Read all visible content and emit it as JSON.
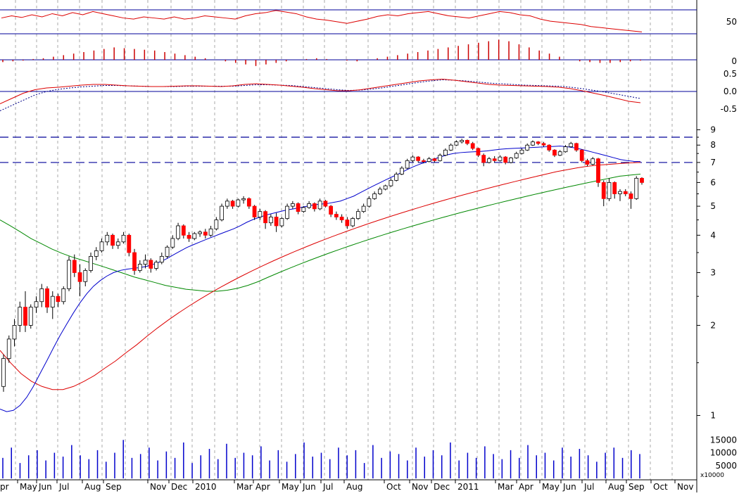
{
  "chart_data": {
    "type": "candlestick",
    "x_labels": [
      "pr",
      "May",
      "Jun",
      "Jul",
      "Aug",
      "Sep",
      "Nov",
      "Dec",
      "2010",
      "Mar",
      "Apr",
      "May",
      "Jun",
      "Jul",
      "Aug",
      "Oct",
      "Nov",
      "Dec",
      "2011",
      "Mar",
      "Apr",
      "May",
      "Jun",
      "Jul",
      "Aug",
      "Sep",
      "Oct",
      "Nov"
    ],
    "price_axis": {
      "scale": "log",
      "range": [
        0.9,
        10
      ],
      "ticks": [
        1,
        2,
        3,
        4,
        5,
        6,
        7,
        8,
        9
      ]
    },
    "reference_lines": [
      8.5,
      7.0
    ],
    "rsi_panel": {
      "ticks": [
        50
      ],
      "series": "rsi"
    },
    "histogram_panel": {
      "ticks": [
        0
      ]
    },
    "macd_panel": {
      "ticks": [
        0.5,
        0.0,
        -0.5
      ]
    },
    "volume_panel": {
      "ticks": [
        15000,
        10000,
        5000
      ],
      "unit_label": "x10000"
    },
    "candles": [
      [
        1.25,
        1.6,
        1.2,
        1.55
      ],
      [
        1.55,
        1.85,
        1.5,
        1.8
      ],
      [
        1.8,
        2.1,
        1.7,
        2.0
      ],
      [
        2.0,
        2.4,
        1.9,
        2.3
      ],
      [
        2.3,
        2.6,
        1.9,
        2.0
      ],
      [
        2.0,
        2.35,
        1.95,
        2.3
      ],
      [
        2.3,
        2.5,
        2.2,
        2.4
      ],
      [
        2.4,
        2.75,
        2.3,
        2.65
      ],
      [
        2.65,
        2.7,
        2.2,
        2.3
      ],
      [
        2.3,
        2.6,
        2.1,
        2.5
      ],
      [
        2.5,
        2.55,
        2.3,
        2.4
      ],
      [
        2.4,
        2.7,
        2.35,
        2.65
      ],
      [
        2.65,
        3.4,
        2.6,
        3.3
      ],
      [
        3.3,
        3.45,
        2.9,
        3.0
      ],
      [
        3.0,
        3.2,
        2.5,
        2.8
      ],
      [
        2.8,
        3.1,
        2.7,
        3.05
      ],
      [
        3.05,
        3.5,
        3.0,
        3.4
      ],
      [
        3.4,
        3.65,
        3.3,
        3.55
      ],
      [
        3.55,
        3.9,
        3.5,
        3.8
      ],
      [
        3.8,
        4.1,
        3.7,
        4.0
      ],
      [
        4.0,
        4.05,
        3.6,
        3.7
      ],
      [
        3.7,
        3.9,
        3.6,
        3.8
      ],
      [
        3.8,
        4.1,
        3.75,
        4.0
      ],
      [
        4.0,
        4.05,
        3.4,
        3.5
      ],
      [
        3.5,
        3.6,
        2.95,
        3.05
      ],
      [
        3.05,
        3.3,
        3.0,
        3.2
      ],
      [
        3.2,
        3.45,
        3.1,
        3.3
      ],
      [
        3.3,
        3.35,
        3.0,
        3.1
      ],
      [
        3.1,
        3.3,
        3.05,
        3.25
      ],
      [
        3.25,
        3.5,
        3.2,
        3.4
      ],
      [
        3.4,
        3.7,
        3.35,
        3.65
      ],
      [
        3.65,
        4.0,
        3.6,
        3.9
      ],
      [
        3.9,
        4.4,
        3.85,
        4.3
      ],
      [
        4.3,
        4.35,
        3.9,
        4.0
      ],
      [
        4.0,
        4.1,
        3.8,
        3.9
      ],
      [
        3.9,
        4.1,
        3.85,
        4.05
      ],
      [
        4.05,
        4.15,
        3.95,
        4.1
      ],
      [
        4.1,
        4.2,
        3.9,
        4.0
      ],
      [
        4.0,
        4.3,
        3.95,
        4.2
      ],
      [
        4.2,
        4.6,
        4.15,
        4.5
      ],
      [
        4.5,
        5.1,
        4.45,
        5.0
      ],
      [
        5.0,
        5.3,
        4.9,
        5.2
      ],
      [
        5.2,
        5.25,
        4.9,
        5.0
      ],
      [
        5.0,
        5.3,
        4.95,
        5.25
      ],
      [
        5.25,
        5.4,
        5.1,
        5.3
      ],
      [
        5.3,
        5.35,
        4.9,
        5.0
      ],
      [
        5.0,
        5.05,
        4.5,
        4.6
      ],
      [
        4.6,
        4.9,
        4.5,
        4.8
      ],
      [
        4.8,
        4.85,
        4.2,
        4.4
      ],
      [
        4.4,
        4.7,
        4.3,
        4.6
      ],
      [
        4.6,
        4.75,
        4.1,
        4.3
      ],
      [
        4.3,
        4.6,
        4.25,
        4.55
      ],
      [
        4.55,
        5.1,
        4.5,
        5.0
      ],
      [
        5.0,
        5.2,
        4.9,
        5.1
      ],
      [
        5.1,
        5.15,
        4.7,
        4.8
      ],
      [
        4.8,
        5.0,
        4.75,
        4.95
      ],
      [
        4.95,
        5.2,
        4.9,
        5.1
      ],
      [
        5.1,
        5.15,
        4.8,
        4.9
      ],
      [
        4.9,
        5.3,
        4.85,
        5.2
      ],
      [
        5.2,
        5.25,
        4.95,
        5.0
      ],
      [
        5.0,
        5.05,
        4.6,
        4.7
      ],
      [
        4.7,
        4.8,
        4.5,
        4.6
      ],
      [
        4.6,
        4.7,
        4.4,
        4.5
      ],
      [
        4.5,
        4.6,
        4.2,
        4.3
      ],
      [
        4.3,
        4.6,
        4.25,
        4.55
      ],
      [
        4.55,
        4.9,
        4.5,
        4.8
      ],
      [
        4.8,
        5.1,
        4.75,
        5.0
      ],
      [
        5.0,
        5.4,
        4.95,
        5.3
      ],
      [
        5.3,
        5.6,
        5.25,
        5.5
      ],
      [
        5.5,
        5.8,
        5.45,
        5.7
      ],
      [
        5.7,
        5.9,
        5.65,
        5.85
      ],
      [
        5.85,
        6.2,
        5.8,
        6.1
      ],
      [
        6.1,
        6.5,
        6.05,
        6.4
      ],
      [
        6.4,
        6.8,
        6.35,
        6.7
      ],
      [
        6.7,
        7.2,
        6.65,
        7.1
      ],
      [
        7.1,
        7.4,
        7.0,
        7.3
      ],
      [
        7.3,
        7.35,
        7.0,
        7.1
      ],
      [
        7.1,
        7.2,
        6.95,
        7.05
      ],
      [
        7.05,
        7.3,
        7.0,
        7.2
      ],
      [
        7.2,
        7.25,
        7.0,
        7.1
      ],
      [
        7.1,
        7.5,
        7.05,
        7.4
      ],
      [
        7.4,
        7.8,
        7.35,
        7.7
      ],
      [
        7.7,
        8.1,
        7.65,
        8.0
      ],
      [
        8.0,
        8.3,
        7.95,
        8.2
      ],
      [
        8.2,
        8.4,
        8.1,
        8.3
      ],
      [
        8.3,
        8.35,
        8.0,
        8.1
      ],
      [
        8.1,
        8.2,
        7.7,
        7.8
      ],
      [
        7.8,
        7.85,
        7.3,
        7.4
      ],
      [
        7.4,
        7.5,
        6.8,
        7.0
      ],
      [
        7.0,
        7.3,
        6.95,
        7.2
      ],
      [
        7.2,
        7.35,
        7.0,
        7.1
      ],
      [
        7.1,
        7.4,
        7.05,
        7.3
      ],
      [
        7.3,
        7.35,
        6.9,
        7.0
      ],
      [
        7.0,
        7.3,
        6.95,
        7.25
      ],
      [
        7.25,
        7.6,
        7.2,
        7.5
      ],
      [
        7.5,
        7.8,
        7.45,
        7.7
      ],
      [
        7.7,
        8.1,
        7.65,
        8.0
      ],
      [
        8.0,
        8.3,
        7.95,
        8.2
      ],
      [
        8.2,
        8.25,
        8.0,
        8.1
      ],
      [
        8.1,
        8.2,
        7.9,
        8.0
      ],
      [
        8.0,
        8.05,
        7.6,
        7.7
      ],
      [
        7.7,
        7.75,
        7.3,
        7.4
      ],
      [
        7.4,
        7.7,
        7.35,
        7.6
      ],
      [
        7.6,
        8.0,
        7.55,
        7.9
      ],
      [
        7.9,
        8.2,
        7.85,
        8.1
      ],
      [
        8.1,
        8.15,
        7.6,
        7.7
      ],
      [
        7.7,
        7.75,
        7.0,
        7.1
      ],
      [
        7.1,
        7.2,
        6.8,
        6.9
      ],
      [
        6.9,
        7.3,
        6.85,
        7.2
      ],
      [
        7.2,
        7.25,
        5.8,
        6.0
      ],
      [
        6.0,
        6.1,
        5.0,
        5.3
      ],
      [
        5.3,
        6.2,
        5.2,
        6.0
      ],
      [
        6.0,
        6.05,
        5.3,
        5.5
      ],
      [
        5.5,
        5.7,
        5.2,
        5.6
      ],
      [
        5.6,
        5.7,
        5.4,
        5.5
      ],
      [
        5.5,
        5.6,
        4.9,
        5.3
      ],
      [
        5.3,
        6.3,
        5.25,
        6.2
      ],
      [
        6.2,
        6.25,
        5.9,
        6.0
      ]
    ],
    "ma_short": [
      1.05,
      1.03,
      1.04,
      1.08,
      1.15,
      1.25,
      1.38,
      1.52,
      1.68,
      1.85,
      2.02,
      2.2,
      2.38,
      2.55,
      2.7,
      2.82,
      2.92,
      3.0,
      3.05,
      3.08,
      3.1,
      3.12,
      3.15,
      3.2,
      3.26,
      3.34,
      3.44,
      3.54,
      3.64,
      3.72,
      3.8,
      3.88,
      3.96,
      4.04,
      4.12,
      4.2,
      4.3,
      4.42,
      4.52,
      4.6,
      4.68,
      4.74,
      4.8,
      4.86,
      4.9,
      4.95,
      5.0,
      5.05,
      5.08,
      5.1,
      5.15,
      5.2,
      5.3,
      5.4,
      5.55,
      5.7,
      5.85,
      6.0,
      6.15,
      6.3,
      6.45,
      6.62,
      6.78,
      6.92,
      7.05,
      7.18,
      7.3,
      7.42,
      7.5,
      7.55,
      7.58,
      7.6,
      7.62,
      7.65,
      7.7,
      7.75,
      7.78,
      7.8,
      7.82,
      7.84,
      7.86,
      7.88,
      7.9,
      7.92,
      7.94,
      7.9,
      7.84,
      7.76,
      7.66,
      7.56,
      7.46,
      7.36,
      7.26,
      7.16,
      7.1,
      7.06,
      7.05
    ],
    "ma_mid": [
      1.65,
      1.5,
      1.38,
      1.3,
      1.25,
      1.22,
      1.22,
      1.25,
      1.3,
      1.36,
      1.44,
      1.52,
      1.62,
      1.72,
      1.84,
      1.96,
      2.08,
      2.2,
      2.32,
      2.44,
      2.56,
      2.68,
      2.8,
      2.92,
      3.04,
      3.16,
      3.28,
      3.4,
      3.52,
      3.64,
      3.76,
      3.88,
      4.0,
      4.12,
      4.24,
      4.36,
      4.48,
      4.6,
      4.72,
      4.84,
      4.96,
      5.08,
      5.2,
      5.32,
      5.44,
      5.56,
      5.68,
      5.8,
      5.92,
      6.04,
      6.16,
      6.28,
      6.4,
      6.52,
      6.62,
      6.72,
      6.8,
      6.86,
      6.9,
      6.94,
      6.98,
      7.0
    ],
    "ma_long": [
      4.5,
      4.3,
      4.1,
      3.9,
      3.75,
      3.6,
      3.48,
      3.38,
      3.3,
      3.22,
      3.14,
      3.06,
      2.98,
      2.9,
      2.84,
      2.78,
      2.72,
      2.68,
      2.64,
      2.62,
      2.6,
      2.6,
      2.62,
      2.66,
      2.72,
      2.8,
      2.9,
      3.0,
      3.1,
      3.2,
      3.3,
      3.4,
      3.5,
      3.6,
      3.7,
      3.8,
      3.9,
      4.0,
      4.1,
      4.2,
      4.3,
      4.4,
      4.5,
      4.6,
      4.7,
      4.8,
      4.9,
      5.0,
      5.1,
      5.2,
      5.3,
      5.4,
      5.5,
      5.6,
      5.7,
      5.8,
      5.9,
      6.0,
      6.1,
      6.2,
      6.3,
      6.35,
      6.4
    ],
    "rsi": [
      62,
      66,
      63,
      68,
      64,
      70,
      66,
      72,
      68,
      74,
      70,
      66,
      62,
      60,
      64,
      62,
      60,
      64,
      60,
      62,
      66,
      64,
      62,
      60,
      66,
      70,
      72,
      76,
      73,
      70,
      64,
      60,
      58,
      55,
      52,
      56,
      60,
      65,
      68,
      66,
      70,
      72,
      74,
      70,
      66,
      64,
      62,
      66,
      70,
      74,
      72,
      68,
      66,
      60,
      56,
      54,
      52,
      50,
      46,
      44,
      42,
      40,
      38,
      36
    ],
    "histogram": [
      -3,
      -2,
      -1,
      1,
      2,
      4,
      6,
      8,
      10,
      12,
      14,
      16,
      15,
      14,
      13,
      12,
      10,
      8,
      6,
      4,
      2,
      0,
      -2,
      -4,
      -6,
      -8,
      -6,
      -4,
      -2,
      0,
      1,
      2,
      1,
      0,
      -1,
      -2,
      0,
      2,
      4,
      6,
      8,
      10,
      12,
      14,
      16,
      18,
      20,
      22,
      24,
      26,
      24,
      20,
      16,
      12,
      8,
      4,
      0,
      -2,
      -3,
      -4,
      -4,
      -3,
      -2,
      -1
    ],
    "macd": [
      -0.35,
      -0.2,
      -0.05,
      0.05,
      0.1,
      0.12,
      0.15,
      0.18,
      0.2,
      0.2,
      0.18,
      0.16,
      0.15,
      0.14,
      0.14,
      0.15,
      0.16,
      0.16,
      0.15,
      0.14,
      0.16,
      0.2,
      0.22,
      0.2,
      0.18,
      0.15,
      0.12,
      0.08,
      0.05,
      0.02,
      0.02,
      0.05,
      0.1,
      0.15,
      0.2,
      0.25,
      0.3,
      0.33,
      0.35,
      0.32,
      0.28,
      0.24,
      0.2,
      0.18,
      0.17,
      0.16,
      0.15,
      0.14,
      0.12,
      0.08,
      0.02,
      -0.05,
      -0.12,
      -0.2,
      -0.28,
      -0.32
    ],
    "signal": [
      -0.55,
      -0.4,
      -0.25,
      -0.1,
      0.0,
      0.06,
      0.1,
      0.13,
      0.15,
      0.17,
      0.17,
      0.16,
      0.15,
      0.14,
      0.14,
      0.14,
      0.15,
      0.15,
      0.15,
      0.15,
      0.15,
      0.17,
      0.19,
      0.19,
      0.18,
      0.17,
      0.14,
      0.11,
      0.08,
      0.05,
      0.03,
      0.04,
      0.07,
      0.11,
      0.16,
      0.21,
      0.26,
      0.3,
      0.33,
      0.32,
      0.3,
      0.27,
      0.24,
      0.22,
      0.2,
      0.18,
      0.17,
      0.16,
      0.15,
      0.12,
      0.08,
      0.03,
      -0.02,
      -0.08,
      -0.14,
      -0.2
    ],
    "volume": [
      8000,
      12000,
      6000,
      9000,
      11000,
      7000,
      10000,
      8500,
      13000,
      9000,
      7500,
      11000,
      6500,
      10000,
      15000,
      8000,
      9500,
      12000,
      7000,
      10500,
      8000,
      14000,
      6000,
      9000,
      11500,
      7500,
      13500,
      8000,
      10000,
      9000,
      12500,
      7000,
      11000,
      6500,
      9500,
      14000,
      8500,
      10000,
      7500,
      12000,
      9000,
      11000,
      6000,
      13000,
      8000,
      10500,
      9500,
      7000,
      12000,
      8500,
      11000,
      9000,
      14000,
      7000,
      10000,
      8000,
      12500,
      9500,
      7500,
      11000,
      8000,
      13000,
      9000,
      10000,
      7000,
      12000,
      8500,
      11500,
      9000,
      6500,
      10000,
      12000,
      8000,
      11000,
      9500
    ],
    "colors": {
      "up": "#ffffff",
      "down": "#ff0000",
      "ma_short": "#0000cc",
      "ma_mid": "#dd0000",
      "ma_long": "#008800",
      "rsi": "#dd0000",
      "histogram": "#cc0000",
      "macd": "#dd0000",
      "signal": "#000088",
      "volume": "#0000cc",
      "ref_line": "#000099",
      "grid": "#aaaaaa"
    }
  }
}
